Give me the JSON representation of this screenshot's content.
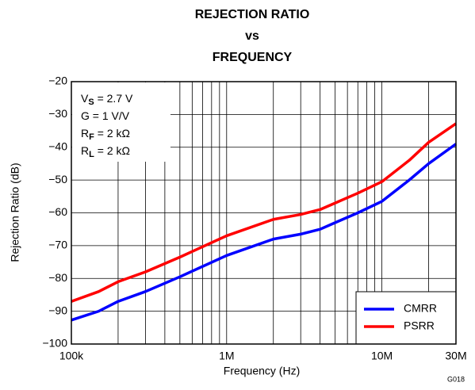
{
  "chart_data": {
    "type": "line",
    "title": [
      "REJECTION RATIO",
      "vs",
      "FREQUENCY"
    ],
    "xlabel": "Frequency (Hz)",
    "ylabel": "Rejection Ratio (dB)",
    "footnote": "G018",
    "annotation": [
      [
        "V",
        "S",
        " = 2.7 V"
      ],
      [
        "G = 1 V/V"
      ],
      [
        "R",
        "F",
        " = 2 kΩ"
      ],
      [
        "R",
        "L",
        " = 2 kΩ"
      ]
    ],
    "xscale": "log",
    "grid": true,
    "legend": "lower right",
    "xlim": [
      100000,
      30000000
    ],
    "xticks": [
      {
        "value": 100000,
        "label": "100k"
      },
      {
        "value": 1000000,
        "label": "1M"
      },
      {
        "value": 10000000,
        "label": "10M"
      },
      {
        "value": 30000000,
        "label": "30M"
      }
    ],
    "xminor": [
      200000,
      300000,
      400000,
      500000,
      600000,
      700000,
      800000,
      900000,
      2000000,
      3000000,
      4000000,
      5000000,
      6000000,
      7000000,
      8000000,
      9000000,
      20000000
    ],
    "ylim": [
      -100,
      -20
    ],
    "yticks": [
      {
        "value": -100,
        "label": "−100"
      },
      {
        "value": -90,
        "label": "−90"
      },
      {
        "value": -80,
        "label": "−80"
      },
      {
        "value": -70,
        "label": "−70"
      },
      {
        "value": -60,
        "label": "−60"
      },
      {
        "value": -50,
        "label": "−50"
      },
      {
        "value": -40,
        "label": "−40"
      },
      {
        "value": -30,
        "label": "−30"
      },
      {
        "value": -20,
        "label": "−20"
      }
    ],
    "x": [
      100000,
      150000,
      200000,
      300000,
      500000,
      1000000,
      2000000,
      3000000,
      4000000,
      5000000,
      7000000,
      10000000,
      15000000,
      20000000,
      30000000
    ],
    "series": [
      {
        "name": "CMRR",
        "color": "#0000ff",
        "values": [
          -92.7,
          -90,
          -87,
          -84,
          -79.5,
          -73,
          -68,
          -66.5,
          -65,
          -63,
          -60,
          -56.5,
          -50,
          -45,
          -39
        ]
      },
      {
        "name": "PSRR",
        "color": "#ff0000",
        "values": [
          -87,
          -84,
          -81,
          -78,
          -73.5,
          -67,
          -62,
          -60.5,
          -59,
          -57,
          -54,
          -50.5,
          -44,
          -38.5,
          -32.8
        ]
      }
    ]
  }
}
